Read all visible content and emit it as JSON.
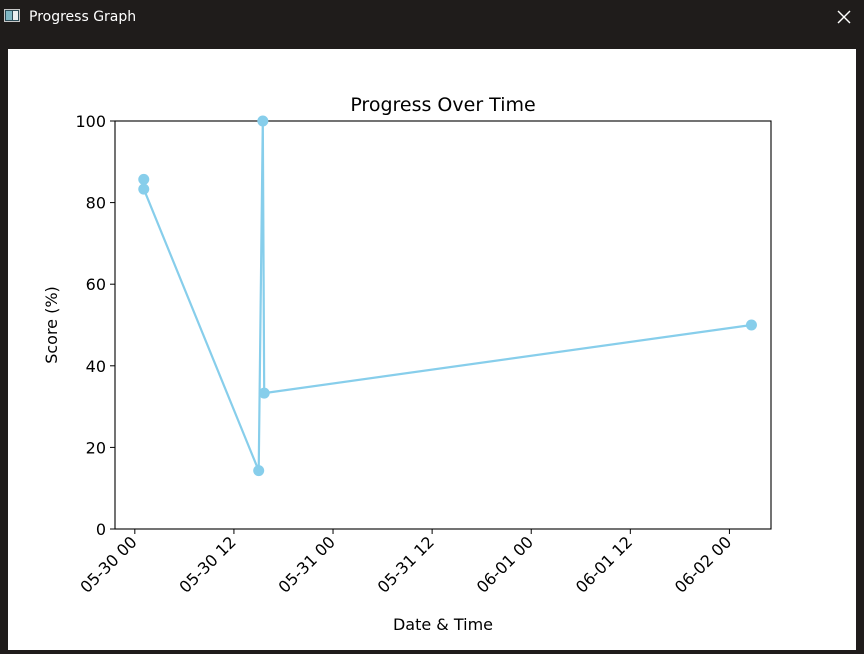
{
  "window": {
    "title": "Progress Graph",
    "icon": "app-window-icon",
    "close_icon": "close-icon"
  },
  "chart_data": {
    "type": "line",
    "title": "Progress Over Time",
    "xlabel": "Date & Time",
    "ylabel": "Score (%)",
    "x_tick_labels": [
      "05-30 00",
      "05-30 12",
      "05-31 00",
      "05-31 12",
      "06-01 00",
      "06-01 12",
      "06-02 00"
    ],
    "y_tick_labels": [
      "0",
      "20",
      "40",
      "60",
      "80",
      "100"
    ],
    "ylim": [
      0,
      100
    ],
    "xlim": [
      "2025-05-29T21:36",
      "2025-06-02T05:02"
    ],
    "grid": false,
    "series_color": "#87ceeb",
    "series": [
      {
        "x": [
          "2025-05-30T01:05",
          "2025-05-30T01:05",
          "2025-05-30T15:00",
          "2025-05-30T15:30",
          "2025-05-30T15:40",
          "2025-06-02T02:40"
        ],
        "values": [
          85.7,
          83.3,
          14.3,
          100,
          33.3,
          50
        ]
      }
    ]
  }
}
